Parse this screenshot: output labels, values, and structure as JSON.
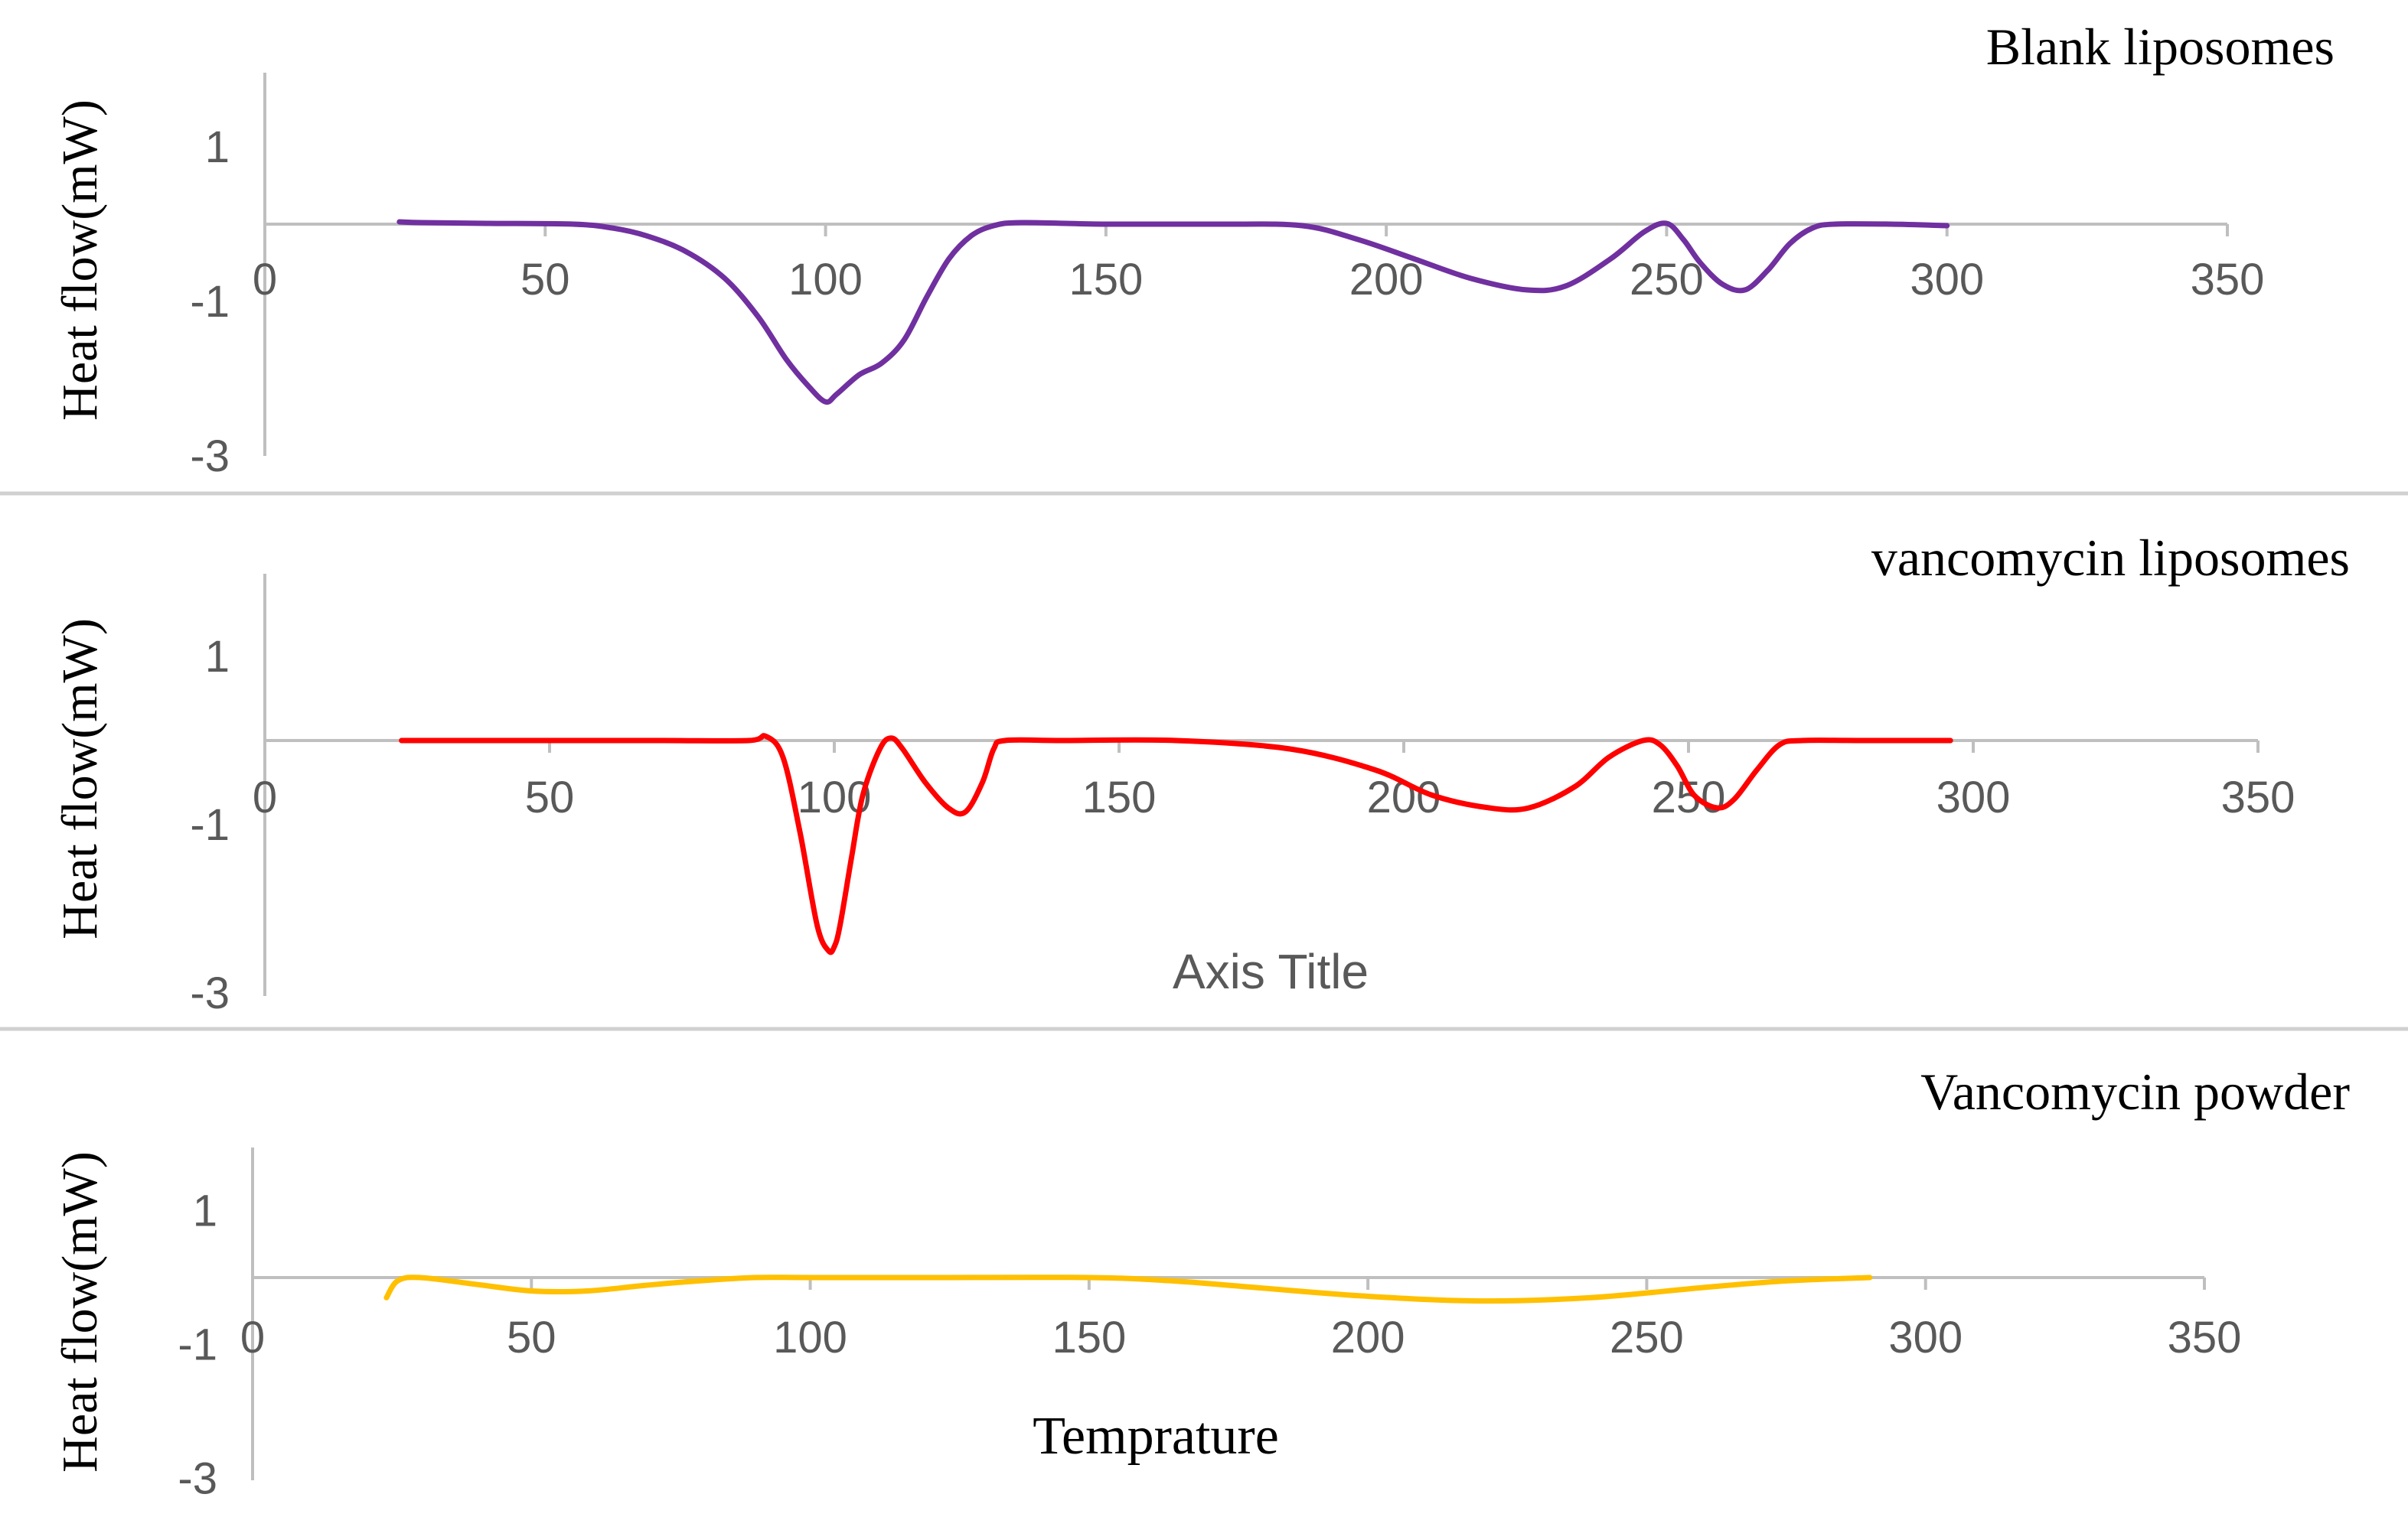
{
  "figure": {
    "ylabel": "Heat flow(mW)"
  },
  "chart_data": [
    {
      "type": "line",
      "title": "Blank liposomes",
      "xlabel": "",
      "ylabel": "Heat flow(mW)",
      "xlim": [
        0,
        350
      ],
      "ylim": [
        -3,
        2
      ],
      "x_ticks": [
        0,
        50,
        100,
        150,
        200,
        250,
        300,
        350
      ],
      "y_ticks": [
        1,
        -1,
        -3
      ],
      "grid": false,
      "color": "#7030A0",
      "series": [
        {
          "x": [
            24,
            28,
            40,
            55,
            62,
            68,
            75,
            82,
            88,
            93,
            97,
            100,
            102,
            106,
            110,
            114,
            118,
            122,
            126,
            130,
            135,
            150,
            170,
            185,
            195,
            205,
            215,
            225,
            232,
            240,
            246,
            250,
            253,
            256,
            260,
            264,
            268,
            272,
            276,
            280,
            290,
            300
          ],
          "y": [
            0.03,
            0.02,
            0.01,
            0.0,
            -0.05,
            -0.15,
            -0.35,
            -0.7,
            -1.2,
            -1.75,
            -2.1,
            -2.3,
            -2.2,
            -1.95,
            -1.8,
            -1.5,
            -0.95,
            -0.45,
            -0.15,
            -0.02,
            0.02,
            0.0,
            0.0,
            -0.02,
            -0.2,
            -0.45,
            -0.7,
            -0.85,
            -0.8,
            -0.45,
            -0.1,
            0.01,
            -0.2,
            -0.5,
            -0.78,
            -0.85,
            -0.6,
            -0.25,
            -0.05,
            0.0,
            0.0,
            -0.02
          ]
        }
      ]
    },
    {
      "type": "line",
      "title": "vancomycin liposomes",
      "xlabel": "Axis Title",
      "ylabel": "Heat flow(mW)",
      "xlim": [
        0,
        350
      ],
      "ylim": [
        -3,
        2
      ],
      "x_ticks": [
        0,
        50,
        100,
        150,
        200,
        250,
        300,
        350
      ],
      "y_ticks": [
        1,
        -1,
        -3
      ],
      "grid": false,
      "color": "#FF0000",
      "series": [
        {
          "x": [
            24,
            30,
            50,
            70,
            85,
            88,
            91,
            94,
            97,
            99,
            100,
            101,
            103,
            105,
            108,
            110,
            112,
            116,
            120,
            123,
            126,
            128,
            130,
            140,
            160,
            180,
            195,
            205,
            215,
            222,
            230,
            236,
            242,
            245,
            248,
            251,
            255,
            258,
            262,
            266,
            270,
            280,
            296
          ],
          "y": [
            0.0,
            0.0,
            0.0,
            0.0,
            0.0,
            0.05,
            -0.2,
            -1.1,
            -2.2,
            -2.5,
            -2.45,
            -2.2,
            -1.4,
            -0.65,
            -0.1,
            0.03,
            -0.1,
            -0.5,
            -0.8,
            -0.85,
            -0.5,
            -0.1,
            0.0,
            0.0,
            0.0,
            -0.1,
            -0.35,
            -0.65,
            -0.8,
            -0.8,
            -0.55,
            -0.2,
            0.0,
            -0.05,
            -0.3,
            -0.65,
            -0.8,
            -0.7,
            -0.35,
            -0.05,
            0.0,
            0.0,
            0.0
          ]
        }
      ]
    },
    {
      "type": "line",
      "title": "Vancomycin powder",
      "xlabel": "Temprature",
      "ylabel": "Heat flow(mW)",
      "xlim": [
        0,
        350
      ],
      "ylim": [
        -3,
        2
      ],
      "x_ticks": [
        0,
        50,
        100,
        150,
        200,
        250,
        300,
        350
      ],
      "y_ticks": [
        1,
        -1,
        -3
      ],
      "grid": false,
      "color": "#FFC000",
      "series": [
        {
          "x": [
            24,
            26,
            30,
            40,
            50,
            60,
            70,
            80,
            90,
            100,
            120,
            150,
            165,
            180,
            200,
            220,
            240,
            260,
            275,
            290
          ],
          "y": [
            -0.3,
            -0.05,
            0.0,
            -0.1,
            -0.2,
            -0.2,
            -0.12,
            -0.05,
            0.0,
            0.0,
            0.0,
            0.0,
            -0.05,
            -0.15,
            -0.28,
            -0.35,
            -0.3,
            -0.15,
            -0.05,
            0.0
          ]
        }
      ]
    }
  ]
}
